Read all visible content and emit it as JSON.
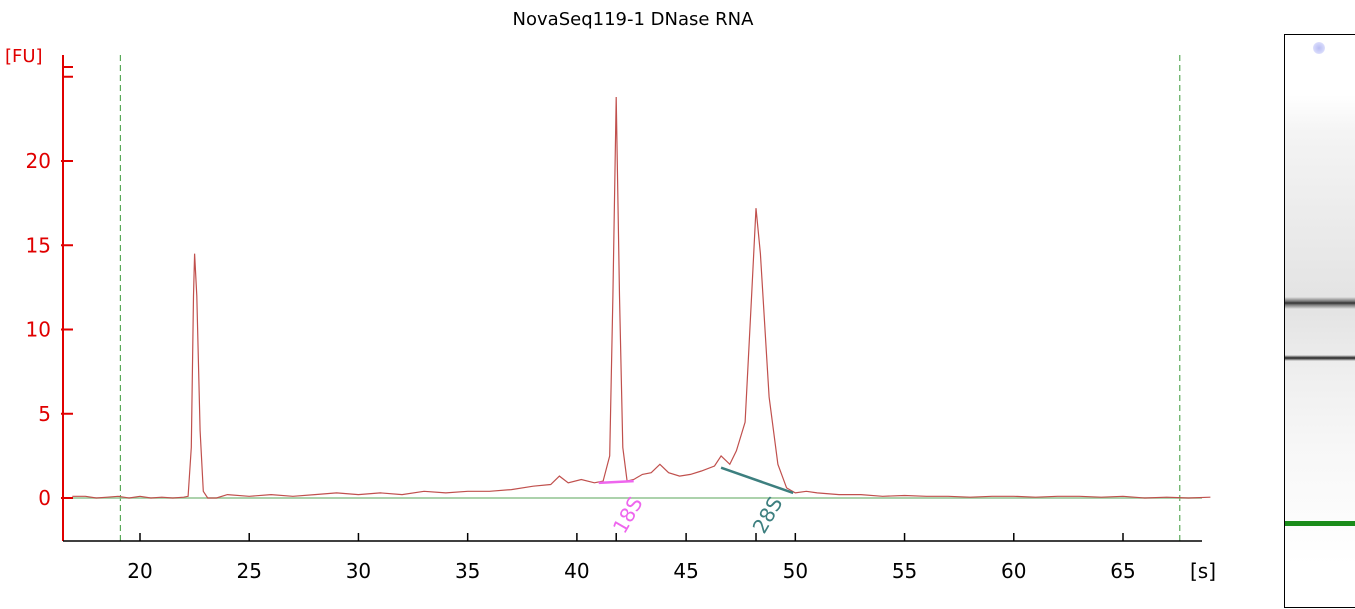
{
  "chart_data": {
    "type": "line",
    "title": "NovaSeq119-1 DNase RNA",
    "ylabel": "[FU]",
    "xlabel": "[s]",
    "xlim": [
      16.9,
      69.2
    ],
    "ylim": [
      -2.5,
      26.5
    ],
    "x_ticks": [
      20,
      25,
      30,
      35,
      40,
      45,
      50,
      55,
      60,
      65
    ],
    "y_ticks": [
      0,
      5,
      10,
      15,
      20
    ],
    "boundaries": [
      19.1,
      67.6
    ],
    "baseline": 0,
    "series": [
      {
        "color": "#c0504d",
        "points": [
          [
            16.9,
            0.1
          ],
          [
            17.5,
            0.1
          ],
          [
            18.0,
            0.0
          ],
          [
            18.5,
            0.05
          ],
          [
            19.0,
            0.1
          ],
          [
            19.5,
            0.0
          ],
          [
            20.0,
            0.1
          ],
          [
            20.5,
            0.0
          ],
          [
            21.0,
            0.05
          ],
          [
            21.5,
            0.0
          ],
          [
            22.0,
            0.05
          ],
          [
            22.2,
            0.1
          ],
          [
            22.35,
            3.0
          ],
          [
            22.45,
            12.0
          ],
          [
            22.5,
            14.5
          ],
          [
            22.6,
            12.0
          ],
          [
            22.75,
            4.0
          ],
          [
            22.9,
            0.4
          ],
          [
            23.1,
            0.0
          ],
          [
            23.5,
            0.0
          ],
          [
            24.0,
            0.2
          ],
          [
            25.0,
            0.1
          ],
          [
            26.0,
            0.2
          ],
          [
            27.0,
            0.1
          ],
          [
            28.0,
            0.2
          ],
          [
            29.0,
            0.3
          ],
          [
            30.0,
            0.2
          ],
          [
            31.0,
            0.3
          ],
          [
            32.0,
            0.2
          ],
          [
            33.0,
            0.4
          ],
          [
            34.0,
            0.3
          ],
          [
            35.0,
            0.4
          ],
          [
            36.0,
            0.4
          ],
          [
            37.0,
            0.5
          ],
          [
            38.0,
            0.7
          ],
          [
            38.8,
            0.8
          ],
          [
            39.2,
            1.3
          ],
          [
            39.6,
            0.9
          ],
          [
            40.2,
            1.1
          ],
          [
            40.8,
            0.9
          ],
          [
            41.2,
            1.0
          ],
          [
            41.5,
            2.5
          ],
          [
            41.65,
            12.0
          ],
          [
            41.8,
            23.8
          ],
          [
            41.95,
            12.0
          ],
          [
            42.1,
            3.0
          ],
          [
            42.3,
            1.0
          ],
          [
            42.6,
            1.1
          ],
          [
            43.0,
            1.4
          ],
          [
            43.4,
            1.5
          ],
          [
            43.8,
            2.0
          ],
          [
            44.2,
            1.5
          ],
          [
            44.7,
            1.3
          ],
          [
            45.2,
            1.4
          ],
          [
            45.7,
            1.6
          ],
          [
            46.3,
            1.9
          ],
          [
            46.6,
            2.5
          ],
          [
            47.0,
            2.0
          ],
          [
            47.3,
            2.8
          ],
          [
            47.7,
            4.5
          ],
          [
            48.0,
            12.0
          ],
          [
            48.2,
            17.2
          ],
          [
            48.4,
            14.5
          ],
          [
            48.8,
            6.0
          ],
          [
            49.2,
            2.0
          ],
          [
            49.6,
            0.6
          ],
          [
            50.0,
            0.3
          ],
          [
            50.5,
            0.4
          ],
          [
            51.0,
            0.3
          ],
          [
            52.0,
            0.2
          ],
          [
            53.0,
            0.2
          ],
          [
            54.0,
            0.1
          ],
          [
            55.0,
            0.15
          ],
          [
            56.0,
            0.1
          ],
          [
            57.0,
            0.1
          ],
          [
            58.0,
            0.05
          ],
          [
            59.0,
            0.1
          ],
          [
            60.0,
            0.1
          ],
          [
            61.0,
            0.05
          ],
          [
            62.0,
            0.1
          ],
          [
            63.0,
            0.1
          ],
          [
            64.0,
            0.05
          ],
          [
            65.0,
            0.1
          ],
          [
            66.0,
            0.0
          ],
          [
            67.0,
            0.05
          ],
          [
            68.0,
            0.0
          ],
          [
            69.0,
            0.05
          ]
        ]
      }
    ],
    "peaks": [
      {
        "label": "18S",
        "x": 41.8,
        "color": "#ee66ee",
        "x_from": 41.0,
        "x_to": 42.6,
        "y_from": 0.9,
        "y_to": 1.0
      },
      {
        "label": "28S",
        "x": 48.2,
        "color": "#3d7f7f",
        "x_from": 46.6,
        "x_to": 49.9,
        "y_from": 1.8,
        "y_to": 0.3
      }
    ]
  },
  "gel": {
    "bands": [
      {
        "label": "28S",
        "color": "#222222",
        "intensity": 0.9
      },
      {
        "label": "18S",
        "color": "#111111",
        "intensity": 1.0
      },
      {
        "label": "marker",
        "color": "#1a8c1a",
        "intensity": 1.0
      }
    ]
  }
}
